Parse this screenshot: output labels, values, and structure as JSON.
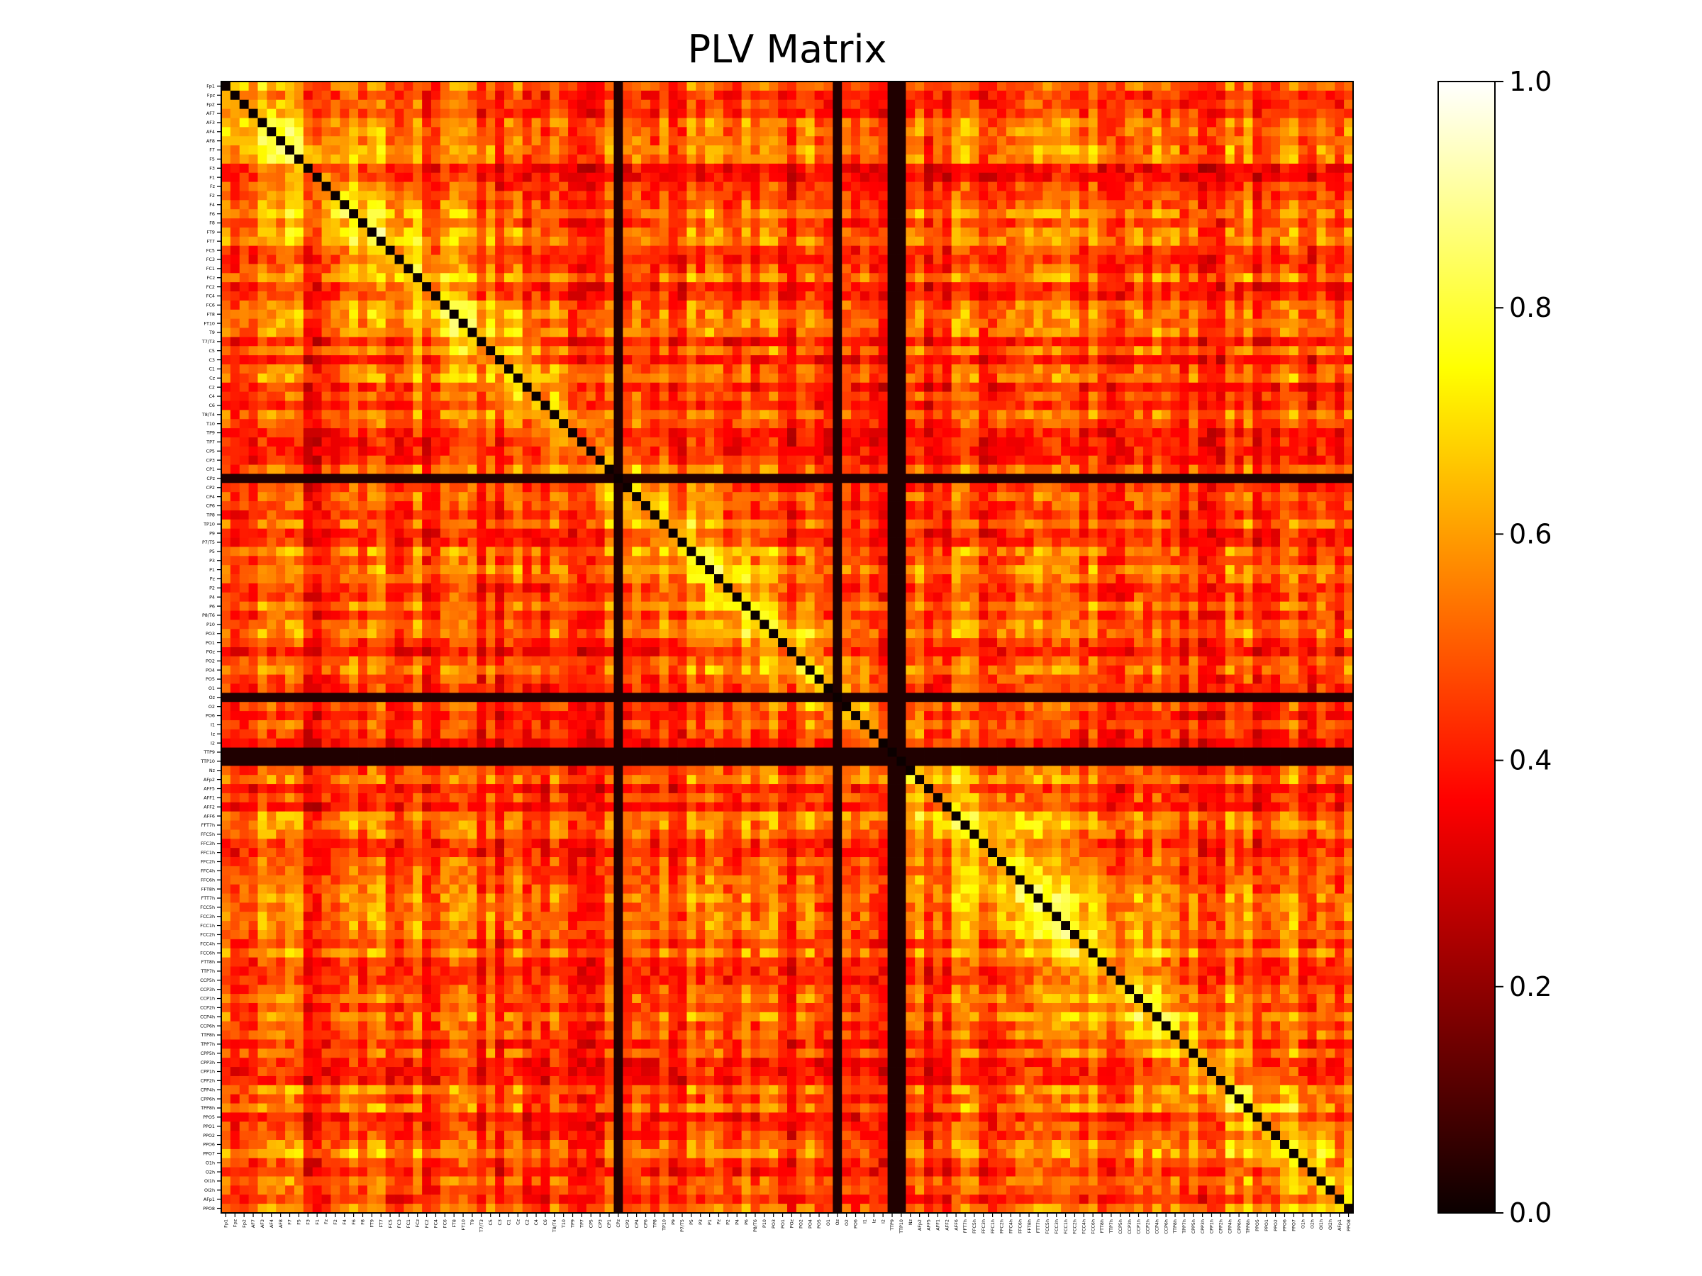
{
  "chart_data": {
    "type": "heatmap",
    "title": "PLV Matrix",
    "xlabel": "",
    "ylabel": "",
    "colormap": "hot",
    "value_range": [
      0.0,
      1.0
    ],
    "colorbar_ticks": [
      "0.0",
      "0.2",
      "0.4",
      "0.6",
      "0.8",
      "1.0"
    ],
    "channels": [
      "Fp1",
      "Fpz",
      "Fp2",
      "AF7",
      "AF3",
      "AF4",
      "AF8",
      "F7",
      "F5",
      "F3",
      "F1",
      "Fz",
      "F2",
      "F4",
      "F6",
      "F8",
      "FT9",
      "FT7",
      "FC5",
      "FC3",
      "FC1",
      "FCz",
      "FC2",
      "FC4",
      "FC6",
      "FT8",
      "FT10",
      "T9",
      "T7/T3",
      "C5",
      "C3",
      "C1",
      "Cz",
      "C2",
      "C4",
      "C6",
      "T8/T4",
      "T10",
      "TP9",
      "TP7",
      "CP5",
      "CP3",
      "CP1",
      "CPz",
      "CP2",
      "CP4",
      "CP6",
      "TP8",
      "TP10",
      "P9",
      "P7/T5",
      "P5",
      "P3",
      "P1",
      "Pz",
      "P2",
      "P4",
      "P6",
      "P8/T6",
      "P10",
      "PO3",
      "PO1",
      "POz",
      "PO2",
      "PO4",
      "PO5",
      "O1",
      "Oz",
      "O2",
      "PO6",
      "I1",
      "Iz",
      "I2",
      "TTP9",
      "TTP10",
      "Nz",
      "AFp2",
      "AFF5",
      "AFF1",
      "AFF2",
      "AFF6",
      "FFT7h",
      "FFC5h",
      "FFC3h",
      "FFC1h",
      "FFC2h",
      "FFC4h",
      "FFC6h",
      "FFT8h",
      "FTT7h",
      "FCC5h",
      "FCC3h",
      "FCC1h",
      "FCC2h",
      "FCC4h",
      "FCC6h",
      "FTT8h",
      "TTP7h",
      "CCP5h",
      "CCP3h",
      "CCP1h",
      "CCP2h",
      "CCP4h",
      "CCP6h",
      "TTP8h",
      "TPP7h",
      "CPP5h",
      "CPP3h",
      "CPP1h",
      "CPP2h",
      "CPP4h",
      "CPP6h",
      "TPP8h",
      "PPO5",
      "PPO1",
      "PPO2",
      "PPO6",
      "PPO7",
      "O1h",
      "O2h",
      "OI1h",
      "OI2h",
      "AFp1",
      "PPO8"
    ],
    "notes_visible": {
      "diagonal": "self-coupling cells rendered black",
      "low_coupling_rows": [
        "CPz",
        "Oz",
        "TTP9",
        "TTP10"
      ]
    }
  },
  "colors": {
    "background": "#ffffff",
    "axis": "#000000"
  }
}
